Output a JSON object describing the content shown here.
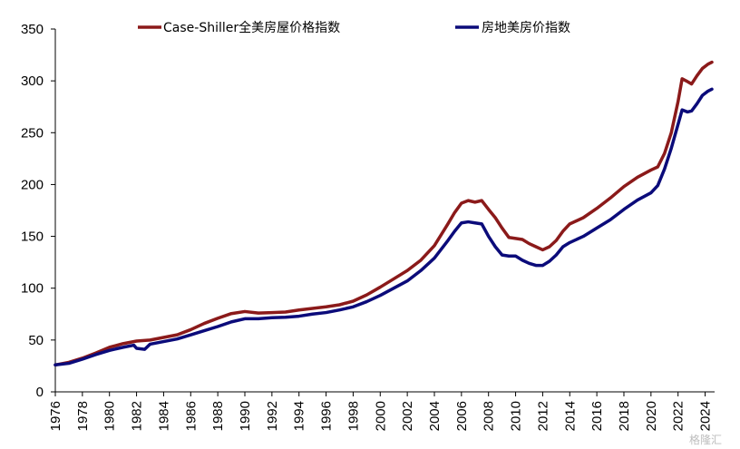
{
  "chart_data": {
    "type": "line",
    "title": "",
    "xlabel": "",
    "ylabel": "",
    "xlim": [
      1976,
      2024.7
    ],
    "ylim": [
      0,
      350
    ],
    "y_ticks": [
      0,
      50,
      100,
      150,
      200,
      250,
      300,
      350
    ],
    "x_ticks": [
      "1976",
      "1978",
      "1980",
      "1982",
      "1984",
      "1986",
      "1988",
      "1990",
      "1992",
      "1994",
      "1996",
      "1998",
      "2000",
      "2002",
      "2004",
      "2006",
      "2008",
      "2010",
      "2012",
      "2014",
      "2016",
      "2018",
      "2020",
      "2022",
      "2024"
    ],
    "grid": false,
    "legend_position": "top",
    "series": [
      {
        "name": "Case-Shiller全美房屋价格指数",
        "color": "#8b1a1a",
        "points": [
          [
            1976,
            26
          ],
          [
            1977,
            28.5
          ],
          [
            1978,
            32.5
          ],
          [
            1979,
            37.5
          ],
          [
            1980,
            43
          ],
          [
            1981,
            46.5
          ],
          [
            1982,
            49
          ],
          [
            1983,
            50
          ],
          [
            1984,
            52.5
          ],
          [
            1985,
            55
          ],
          [
            1986,
            60
          ],
          [
            1987,
            66
          ],
          [
            1988,
            71
          ],
          [
            1989,
            75.5
          ],
          [
            1990,
            77.5
          ],
          [
            1991,
            76
          ],
          [
            1992,
            76.5
          ],
          [
            1993,
            77
          ],
          [
            1994,
            79
          ],
          [
            1995,
            80.5
          ],
          [
            1996,
            82
          ],
          [
            1997,
            84
          ],
          [
            1998,
            87.5
          ],
          [
            1999,
            93.5
          ],
          [
            2000,
            101
          ],
          [
            2001,
            109
          ],
          [
            2002,
            117
          ],
          [
            2003,
            127
          ],
          [
            2004,
            141
          ],
          [
            2005,
            162
          ],
          [
            2005.5,
            173
          ],
          [
            2006,
            182
          ],
          [
            2006.5,
            184.5
          ],
          [
            2007,
            183
          ],
          [
            2007.5,
            184.5
          ],
          [
            2008,
            176
          ],
          [
            2008.5,
            168
          ],
          [
            2009,
            158
          ],
          [
            2009.5,
            149
          ],
          [
            2010,
            148
          ],
          [
            2010.5,
            147
          ],
          [
            2011,
            143
          ],
          [
            2011.5,
            140
          ],
          [
            2012,
            137
          ],
          [
            2012.5,
            140
          ],
          [
            2013,
            146
          ],
          [
            2013.5,
            155
          ],
          [
            2014,
            162
          ],
          [
            2015,
            168
          ],
          [
            2016,
            177
          ],
          [
            2017,
            187
          ],
          [
            2018,
            198
          ],
          [
            2019,
            207
          ],
          [
            2020,
            214
          ],
          [
            2020.5,
            217
          ],
          [
            2021,
            230
          ],
          [
            2021.5,
            250
          ],
          [
            2022,
            280
          ],
          [
            2022.3,
            302
          ],
          [
            2022.6,
            300
          ],
          [
            2023,
            297
          ],
          [
            2023.4,
            305
          ],
          [
            2023.8,
            312
          ],
          [
            2024.2,
            316
          ],
          [
            2024.5,
            318
          ]
        ]
      },
      {
        "name": "房地美房价指数",
        "color": "#0b0b7a",
        "points": [
          [
            1976,
            26
          ],
          [
            1977,
            27.5
          ],
          [
            1978,
            31.5
          ],
          [
            1979,
            36
          ],
          [
            1980,
            40
          ],
          [
            1981,
            43
          ],
          [
            1981.8,
            45
          ],
          [
            1982,
            42
          ],
          [
            1982.6,
            41
          ],
          [
            1983,
            46
          ],
          [
            1984,
            48.5
          ],
          [
            1985,
            51
          ],
          [
            1986,
            55
          ],
          [
            1987,
            59
          ],
          [
            1988,
            63
          ],
          [
            1989,
            67.5
          ],
          [
            1990,
            70.5
          ],
          [
            1991,
            70.5
          ],
          [
            1992,
            71.5
          ],
          [
            1993,
            72
          ],
          [
            1994,
            73
          ],
          [
            1995,
            75
          ],
          [
            1996,
            76.5
          ],
          [
            1997,
            79
          ],
          [
            1998,
            82
          ],
          [
            1999,
            87
          ],
          [
            2000,
            93
          ],
          [
            2001,
            100
          ],
          [
            2002,
            107
          ],
          [
            2003,
            117
          ],
          [
            2004,
            129
          ],
          [
            2005,
            146
          ],
          [
            2005.5,
            155
          ],
          [
            2006,
            163
          ],
          [
            2006.5,
            164
          ],
          [
            2007,
            163
          ],
          [
            2007.5,
            162
          ],
          [
            2008,
            150
          ],
          [
            2008.5,
            140
          ],
          [
            2009,
            132
          ],
          [
            2009.5,
            131
          ],
          [
            2010,
            131
          ],
          [
            2010.5,
            127
          ],
          [
            2011,
            124
          ],
          [
            2011.5,
            122
          ],
          [
            2012,
            122
          ],
          [
            2012.5,
            126
          ],
          [
            2013,
            132
          ],
          [
            2013.5,
            140
          ],
          [
            2014,
            144
          ],
          [
            2015,
            150
          ],
          [
            2016,
            158
          ],
          [
            2017,
            166
          ],
          [
            2018,
            176
          ],
          [
            2019,
            185
          ],
          [
            2020,
            192
          ],
          [
            2020.5,
            199
          ],
          [
            2021,
            215
          ],
          [
            2021.5,
            235
          ],
          [
            2022,
            258
          ],
          [
            2022.3,
            272
          ],
          [
            2022.7,
            270
          ],
          [
            2023,
            271
          ],
          [
            2023.4,
            278
          ],
          [
            2023.8,
            286
          ],
          [
            2024.2,
            290
          ],
          [
            2024.5,
            292
          ]
        ]
      }
    ]
  },
  "watermark": "格隆汇"
}
